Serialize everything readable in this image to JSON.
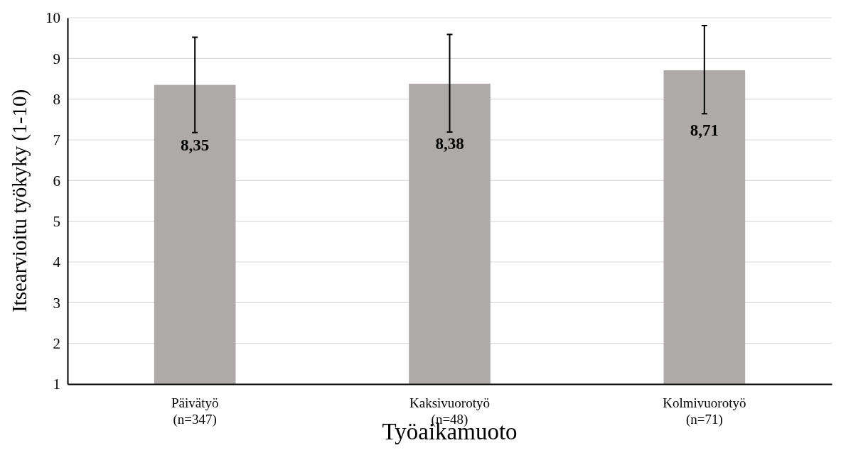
{
  "chart_data": {
    "type": "bar",
    "xlabel": "Työaikamuoto",
    "ylabel": "Itsearvioitu työkyky (1-10)",
    "categories": [
      "Päivätyö\n(n=347)",
      "Kaksivuorotyö\n(n=48)",
      "Kolmivuorotyö\n(n=71)"
    ],
    "values": [
      8.35,
      8.38,
      8.71
    ],
    "errors": [
      [
        7.18,
        9.52
      ],
      [
        7.19,
        9.59
      ],
      [
        7.64,
        9.81
      ]
    ],
    "value_labels": [
      "8,35",
      "8,38",
      "8,71"
    ],
    "color": "#aeaaaa",
    "ylim": [
      1,
      10
    ],
    "yticks": [
      1,
      2,
      3,
      4,
      5,
      6,
      7,
      8,
      9,
      10
    ],
    "grid": "y"
  }
}
